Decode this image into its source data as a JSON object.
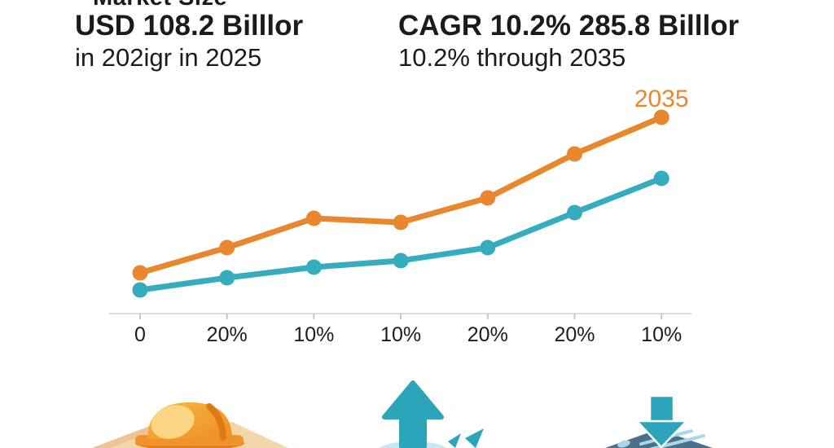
{
  "header": {
    "left": {
      "eyebrow": "Market Size",
      "title": "USD 108.2 Billlor",
      "subtitle": "in 202igr in 2025"
    },
    "right": {
      "title": "CAGR 10.2% 285.8 Billlor",
      "subtitle": "10.2% through 2035"
    }
  },
  "chart_data": {
    "type": "line",
    "title": "",
    "xlabel": "",
    "ylabel": "",
    "x_tick_labels": [
      "0",
      "20%",
      "10%",
      "10%",
      "20%",
      "20%",
      "10%"
    ],
    "annotation": {
      "text": "2035",
      "color": "#E8872E",
      "position": "above-last-point"
    },
    "series": [
      {
        "name": "orange-upper-line",
        "color": "#E8872E",
        "values": [
          50,
          81,
          117,
          112,
          142,
          196,
          241
        ]
      },
      {
        "name": "teal-lower-line",
        "color": "#36ADBF",
        "values": [
          29,
          44,
          57,
          65,
          81,
          124,
          166
        ]
      }
    ],
    "ylim": [
      0,
      260
    ],
    "grid": false,
    "legend": "none",
    "axis_color": "#DCDCDC",
    "tick_color": "#C8C8C8",
    "tick_label_color": "#1D1D1D"
  },
  "icons": {
    "hard_hat": "hard-hat-icon",
    "arrow_up": "arrow-up-icon",
    "arrow_down": "arrow-down-icon"
  },
  "colors": {
    "orange": "#E8872E",
    "teal": "#36ADBF",
    "arrow_teal": "#2CA4BA",
    "hat_dome": "#F3A02C",
    "hat_highlight": "#FBD684",
    "sand": "#F4D6AB",
    "roof_slate": "#4C7089",
    "roof_light": "#A7D8E9",
    "text_dark": "#1B1B1F"
  }
}
